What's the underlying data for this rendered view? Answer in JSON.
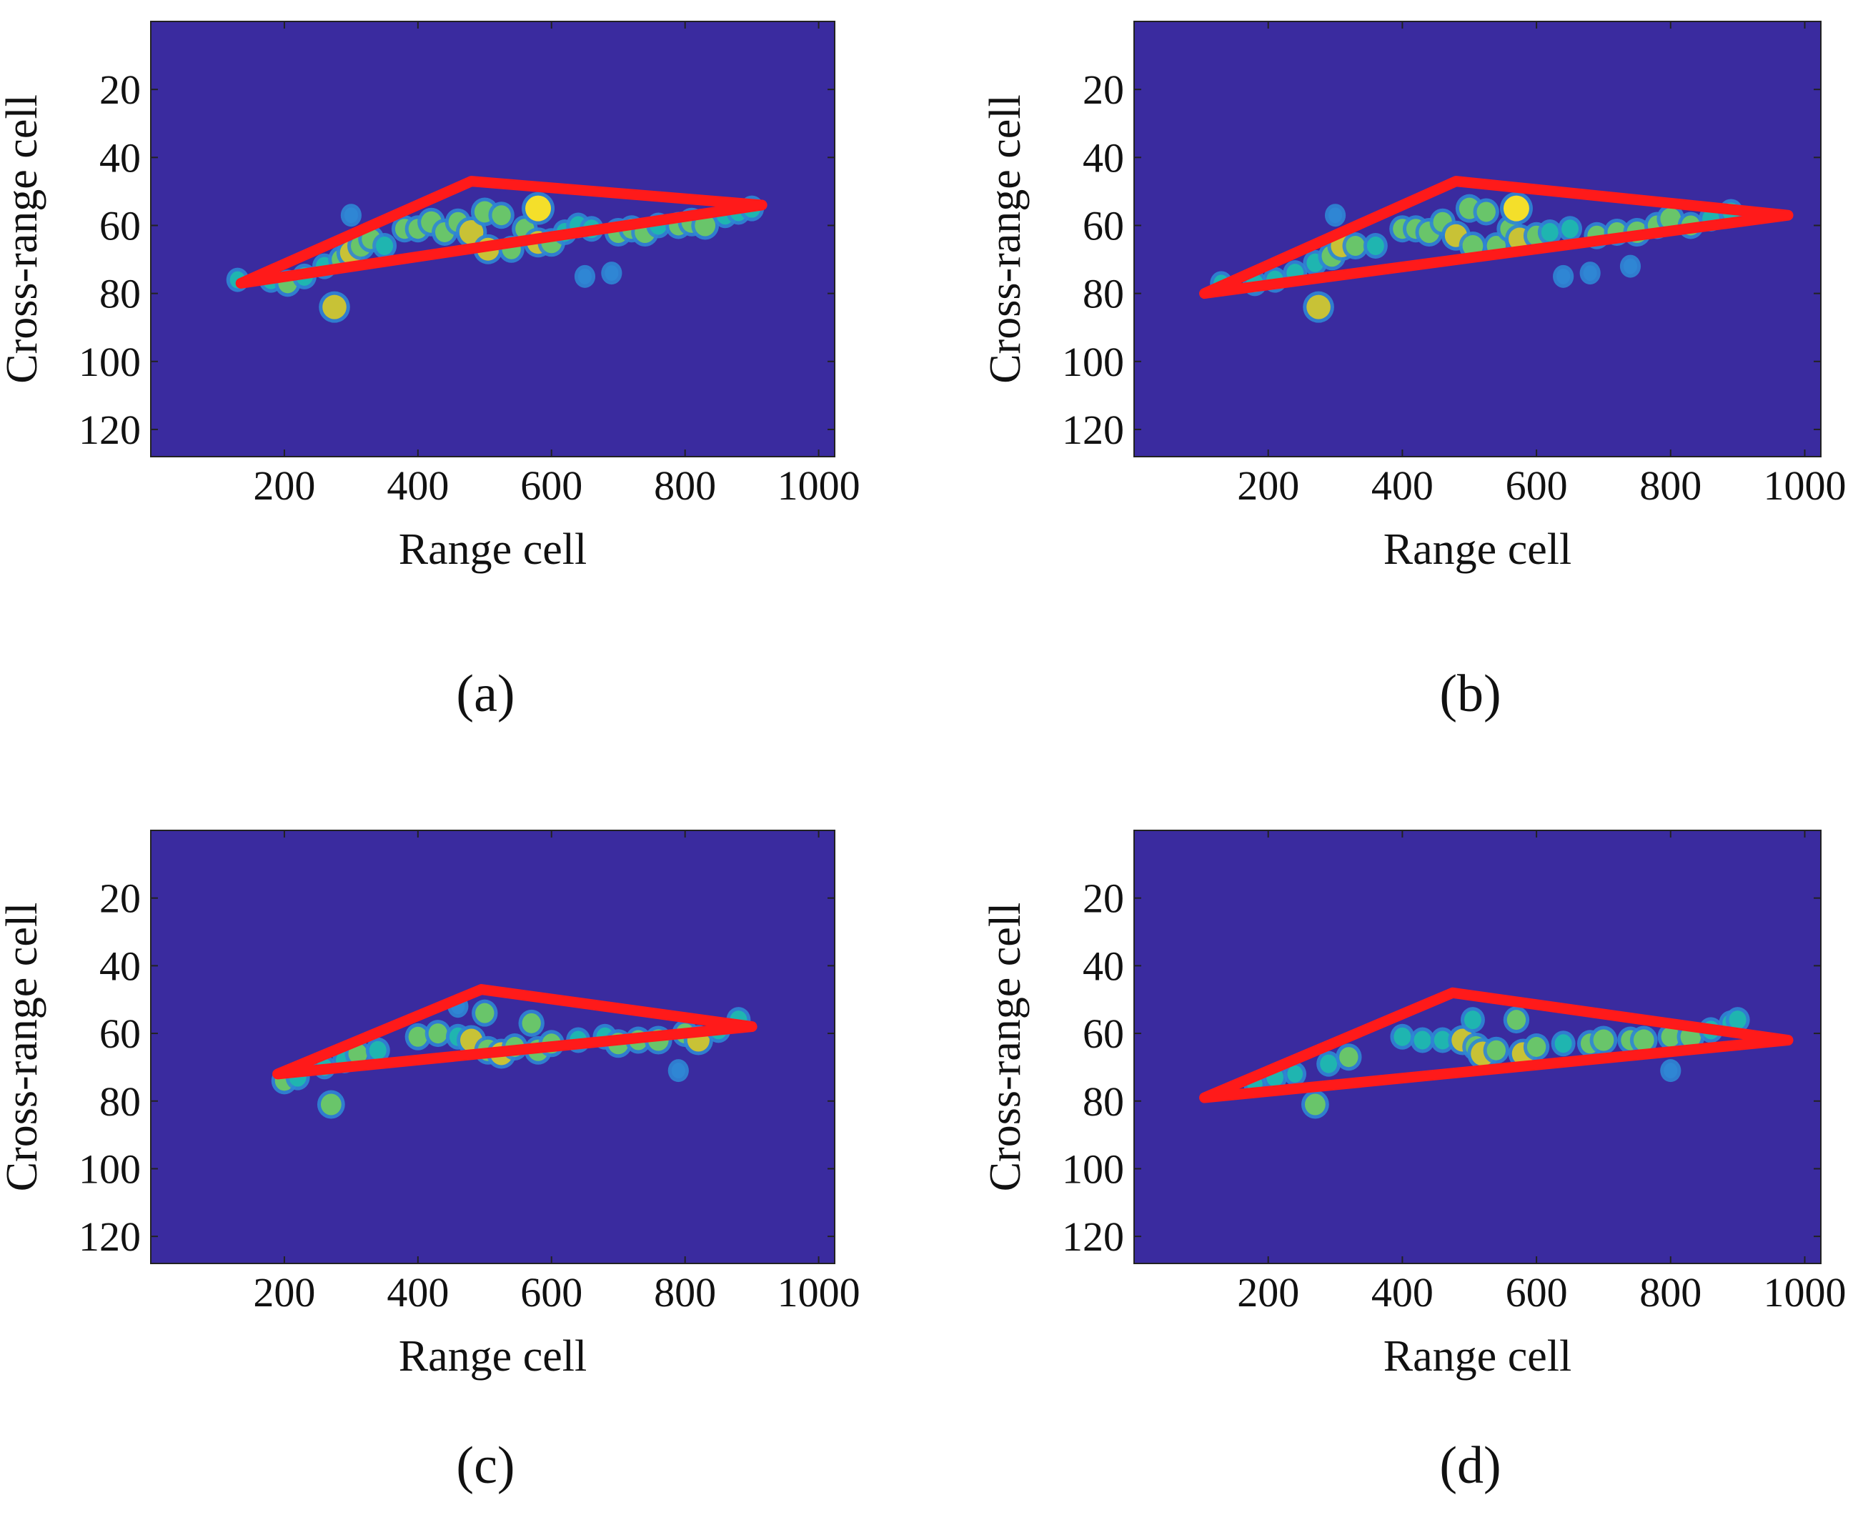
{
  "figure": {
    "panel_labels": [
      "(a)",
      "(b)",
      "(c)",
      "(d)"
    ]
  },
  "colors": {
    "background": "#3a2b9f",
    "outline": "#ff1a1a",
    "frame": "#222222",
    "colormap": [
      "#3a2b9f",
      "#2f86d4",
      "#1fb5b0",
      "#69c56a",
      "#c8c236",
      "#f4df2a"
    ]
  },
  "chart_data": [
    {
      "type": "heatmap",
      "panel": "(a)",
      "xlabel": "Range cell",
      "ylabel": "Cross-range cell",
      "xlim": [
        0,
        1024
      ],
      "ylim": [
        128,
        0
      ],
      "xticks": [
        200,
        400,
        600,
        800,
        1000
      ],
      "yticks": [
        20,
        40,
        60,
        80,
        100,
        120
      ],
      "grid": false,
      "outline": [
        [
          480,
          47
        ],
        [
          915,
          54
        ],
        [
          135,
          77
        ]
      ],
      "scatterers": [
        [
          130,
          76,
          0.4
        ],
        [
          180,
          76,
          0.5
        ],
        [
          205,
          77,
          0.6
        ],
        [
          230,
          75,
          0.5
        ],
        [
          260,
          72,
          0.5
        ],
        [
          285,
          70,
          0.6
        ],
        [
          300,
          68,
          0.8
        ],
        [
          315,
          66,
          0.7
        ],
        [
          330,
          64,
          0.6
        ],
        [
          350,
          66,
          0.5
        ],
        [
          380,
          61,
          0.6
        ],
        [
          400,
          61,
          0.6
        ],
        [
          420,
          59,
          0.7
        ],
        [
          440,
          62,
          0.6
        ],
        [
          460,
          59,
          0.6
        ],
        [
          480,
          62,
          0.9
        ],
        [
          500,
          56,
          0.7
        ],
        [
          505,
          67,
          0.8
        ],
        [
          525,
          57,
          0.6
        ],
        [
          540,
          67,
          0.6
        ],
        [
          560,
          61,
          0.6
        ],
        [
          580,
          55,
          1.0
        ],
        [
          580,
          65,
          0.8
        ],
        [
          600,
          65,
          0.7
        ],
        [
          620,
          62,
          0.5
        ],
        [
          640,
          60,
          0.5
        ],
        [
          660,
          61,
          0.5
        ],
        [
          700,
          62,
          0.7
        ],
        [
          720,
          61,
          0.6
        ],
        [
          740,
          62,
          0.7
        ],
        [
          760,
          60,
          0.5
        ],
        [
          790,
          60,
          0.6
        ],
        [
          810,
          59,
          0.7
        ],
        [
          830,
          60,
          0.7
        ],
        [
          860,
          57,
          0.5
        ],
        [
          880,
          56,
          0.5
        ],
        [
          900,
          55,
          0.5
        ],
        [
          275,
          84,
          0.9
        ],
        [
          300,
          57,
          0.3
        ],
        [
          650,
          75,
          0.3
        ],
        [
          690,
          74,
          0.3
        ]
      ]
    },
    {
      "type": "heatmap",
      "panel": "(b)",
      "xlabel": "Range cell",
      "ylabel": "Cross-range cell",
      "xlim": [
        0,
        1024
      ],
      "ylim": [
        128,
        0
      ],
      "xticks": [
        200,
        400,
        600,
        800,
        1000
      ],
      "yticks": [
        20,
        40,
        60,
        80,
        100,
        120
      ],
      "grid": false,
      "outline": [
        [
          480,
          47
        ],
        [
          975,
          57
        ],
        [
          105,
          80
        ]
      ],
      "scatterers": [
        [
          130,
          77,
          0.4
        ],
        [
          180,
          77,
          0.5
        ],
        [
          210,
          76,
          0.5
        ],
        [
          240,
          74,
          0.5
        ],
        [
          270,
          71,
          0.5
        ],
        [
          295,
          69,
          0.7
        ],
        [
          310,
          66,
          0.8
        ],
        [
          330,
          66,
          0.6
        ],
        [
          360,
          66,
          0.5
        ],
        [
          400,
          61,
          0.6
        ],
        [
          420,
          61,
          0.6
        ],
        [
          440,
          62,
          0.7
        ],
        [
          460,
          59,
          0.6
        ],
        [
          480,
          63,
          0.8
        ],
        [
          500,
          55,
          0.7
        ],
        [
          505,
          66,
          0.7
        ],
        [
          525,
          56,
          0.6
        ],
        [
          540,
          66,
          0.6
        ],
        [
          560,
          61,
          0.6
        ],
        [
          570,
          55,
          1.0
        ],
        [
          575,
          64,
          0.8
        ],
        [
          600,
          63,
          0.6
        ],
        [
          620,
          62,
          0.5
        ],
        [
          650,
          61,
          0.5
        ],
        [
          690,
          63,
          0.6
        ],
        [
          720,
          62,
          0.6
        ],
        [
          750,
          62,
          0.7
        ],
        [
          780,
          60,
          0.6
        ],
        [
          800,
          58,
          0.7
        ],
        [
          830,
          60,
          0.6
        ],
        [
          860,
          58,
          0.5
        ],
        [
          890,
          56,
          0.5
        ],
        [
          275,
          84,
          0.9
        ],
        [
          300,
          57,
          0.3
        ],
        [
          640,
          75,
          0.3
        ],
        [
          680,
          74,
          0.3
        ],
        [
          740,
          72,
          0.3
        ]
      ]
    },
    {
      "type": "heatmap",
      "panel": "(c)",
      "xlabel": "Range cell",
      "ylabel": "Cross-range cell",
      "xlim": [
        0,
        1024
      ],
      "ylim": [
        128,
        0
      ],
      "xticks": [
        200,
        400,
        600,
        800,
        1000
      ],
      "yticks": [
        20,
        40,
        60,
        80,
        100,
        120
      ],
      "grid": false,
      "outline": [
        [
          495,
          47
        ],
        [
          900,
          58
        ],
        [
          190,
          72
        ]
      ],
      "scatterers": [
        [
          200,
          74,
          0.6
        ],
        [
          220,
          73,
          0.5
        ],
        [
          260,
          70,
          0.4
        ],
        [
          290,
          68,
          0.5
        ],
        [
          310,
          66,
          0.6
        ],
        [
          340,
          65,
          0.5
        ],
        [
          400,
          61,
          0.6
        ],
        [
          430,
          60,
          0.6
        ],
        [
          460,
          61,
          0.5
        ],
        [
          480,
          62,
          0.8
        ],
        [
          500,
          54,
          0.6
        ],
        [
          505,
          65,
          0.7
        ],
        [
          525,
          66,
          0.8
        ],
        [
          545,
          64,
          0.6
        ],
        [
          570,
          57,
          0.6
        ],
        [
          580,
          65,
          0.7
        ],
        [
          600,
          63,
          0.6
        ],
        [
          640,
          62,
          0.5
        ],
        [
          680,
          61,
          0.5
        ],
        [
          700,
          63,
          0.7
        ],
        [
          730,
          62,
          0.6
        ],
        [
          760,
          62,
          0.7
        ],
        [
          800,
          60,
          0.6
        ],
        [
          820,
          62,
          0.8
        ],
        [
          850,
          59,
          0.5
        ],
        [
          880,
          56,
          0.5
        ],
        [
          270,
          81,
          0.7
        ],
        [
          790,
          71,
          0.3
        ],
        [
          460,
          52,
          0.3
        ]
      ]
    },
    {
      "type": "heatmap",
      "panel": "(d)",
      "xlabel": "Range cell",
      "ylabel": "Cross-range cell",
      "xlim": [
        0,
        1024
      ],
      "ylim": [
        128,
        0
      ],
      "xticks": [
        200,
        400,
        600,
        800,
        1000
      ],
      "yticks": [
        20,
        40,
        60,
        80,
        100,
        120
      ],
      "grid": false,
      "outline": [
        [
          475,
          48
        ],
        [
          975,
          62
        ],
        [
          105,
          79
        ]
      ],
      "scatterers": [
        [
          180,
          75,
          0.4
        ],
        [
          210,
          73,
          0.5
        ],
        [
          240,
          72,
          0.4
        ],
        [
          290,
          69,
          0.5
        ],
        [
          320,
          67,
          0.6
        ],
        [
          400,
          61,
          0.5
        ],
        [
          430,
          62,
          0.5
        ],
        [
          460,
          62,
          0.5
        ],
        [
          490,
          62,
          0.8
        ],
        [
          505,
          56,
          0.5
        ],
        [
          510,
          64,
          0.7
        ],
        [
          520,
          66,
          0.9
        ],
        [
          540,
          65,
          0.6
        ],
        [
          570,
          56,
          0.6
        ],
        [
          580,
          66,
          0.8
        ],
        [
          600,
          64,
          0.6
        ],
        [
          640,
          63,
          0.5
        ],
        [
          680,
          63,
          0.6
        ],
        [
          700,
          62,
          0.7
        ],
        [
          740,
          62,
          0.6
        ],
        [
          760,
          62,
          0.7
        ],
        [
          800,
          61,
          0.6
        ],
        [
          830,
          61,
          0.7
        ],
        [
          860,
          59,
          0.5
        ],
        [
          890,
          57,
          0.5
        ],
        [
          900,
          56,
          0.5
        ],
        [
          270,
          81,
          0.7
        ],
        [
          800,
          71,
          0.3
        ]
      ]
    }
  ]
}
